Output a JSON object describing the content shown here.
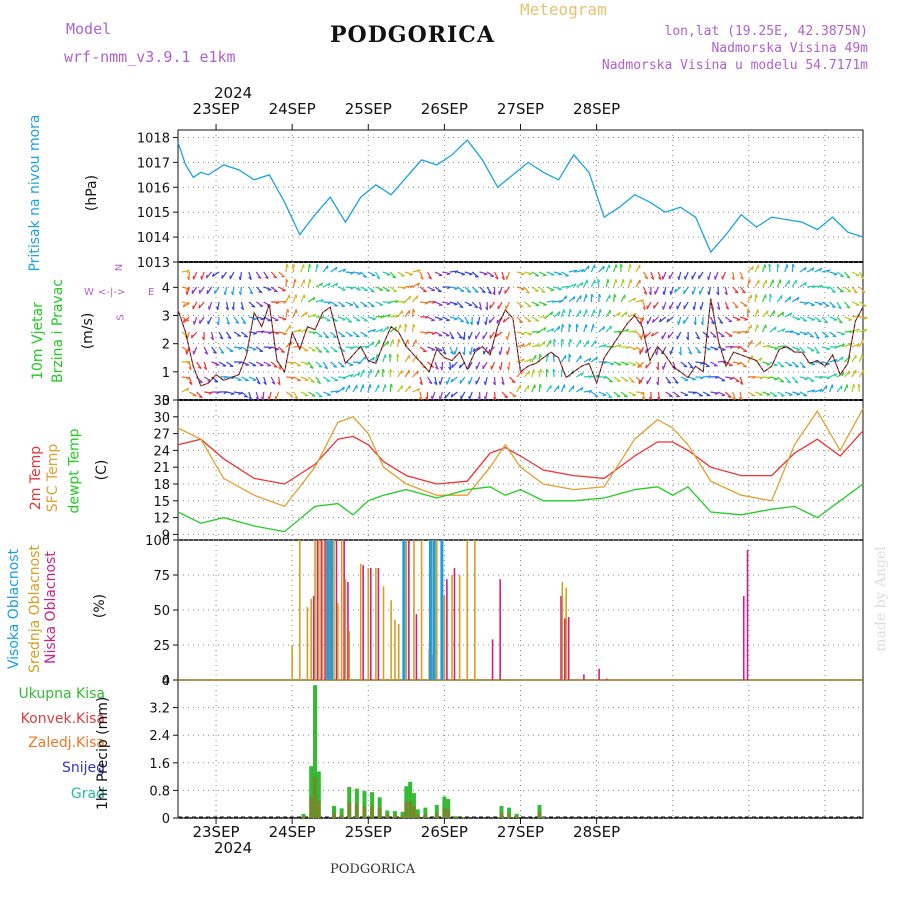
{
  "header": {
    "model_label": "Model",
    "model_name": "wrf-nmm_v3.9.1  e1km",
    "title": "PODGORICA",
    "meteogram": "Meteogram",
    "lonlat": "lon,lat (19.25E, 42.3875N)",
    "altitude": "Nadmorska Visina 49m",
    "model_altitude": "Nadmorska Visina u modelu 54.7171m"
  },
  "time_axis": {
    "year": "2024",
    "days": [
      "23SEP",
      "24SEP",
      "25SEP",
      "26SEP",
      "27SEP",
      "28SEP"
    ]
  },
  "footer": {
    "station": "PODGORICA",
    "credit": "made by Angel"
  },
  "colors": {
    "pressure": "#1aa3e0",
    "temp2m": "#ee3333",
    "sfc": "#e0a030",
    "dew": "#22cc22",
    "cloud_high": "#1a9ee6",
    "cloud_mid": "#d4a020",
    "cloud_low": "#cc1f8a",
    "precip_total": "#33bb33",
    "precip_conv": "#d84040",
    "precip_frozen": "#ee7722",
    "snow": "#3333cc",
    "grad": "#22bbaa",
    "wind_line": "#ee3333"
  },
  "panels": {
    "pressure": {
      "labels": [
        "Pritisak na nivou mora",
        "(hPa)"
      ],
      "ticks": [
        "1018",
        "1017",
        "1016",
        "1015",
        "1014",
        "1013"
      ]
    },
    "wind": {
      "labels": [
        "10m Vjetar",
        "Brzina i Pravac",
        "(m/s)"
      ],
      "compass": [
        "N",
        "E",
        "S",
        "W"
      ],
      "ticks": [
        "4",
        "3",
        "2",
        "1",
        "0"
      ]
    },
    "temperature": {
      "labels": [
        "2m Temp",
        "SFC Temp",
        "dewpt Temp",
        "(C)"
      ],
      "ticks": [
        "33",
        "30",
        "27",
        "24",
        "21",
        "18",
        "15",
        "12",
        "9"
      ]
    },
    "cloud": {
      "labels": [
        "Visoka Oblacnost",
        "Srednja Oblacnost",
        "Niska Oblacnost",
        "(%)"
      ],
      "ticks": [
        "100",
        "75",
        "50",
        "25",
        "0"
      ]
    },
    "precip": {
      "labels": [
        "Ukupna Kisa",
        "Konvek.Kisa",
        "Zaledj.Kisa",
        "Snijeg",
        "Grad",
        "1hr Precip (mm)"
      ],
      "ticks": [
        "4",
        "3.2",
        "2.4",
        "1.6",
        "0.8",
        "0"
      ]
    }
  },
  "chart_data": [
    {
      "type": "line",
      "title": "",
      "ylabel": "Pritisak na nivou mora (hPa)",
      "ylim": [
        1013,
        1018.3
      ],
      "x_days": [
        0.0,
        0.1,
        0.2,
        0.3,
        0.4,
        0.6,
        0.8,
        1.0,
        1.2,
        1.4,
        1.6,
        1.8,
        2.0,
        2.2,
        2.4,
        2.6,
        2.8,
        3.0,
        3.2,
        3.4,
        3.6,
        3.8,
        4.0,
        4.2,
        4.4,
        4.6,
        4.8,
        5.0,
        5.2,
        5.4,
        5.6,
        5.8,
        6.0,
        6.2,
        6.4,
        6.6,
        6.8,
        7.0,
        7.2,
        7.4,
        7.6,
        7.8,
        8.0,
        8.2,
        8.4,
        8.6,
        8.8,
        9.0
      ],
      "series": [
        {
          "name": "Pritisak na nivou mora",
          "values": [
            1017.8,
            1016.9,
            1016.4,
            1016.6,
            1016.5,
            1016.9,
            1016.7,
            1016.3,
            1016.5,
            1015.4,
            1014.1,
            1014.9,
            1015.6,
            1014.6,
            1015.6,
            1016.1,
            1015.7,
            1016.4,
            1017.1,
            1016.9,
            1017.3,
            1017.9,
            1017.1,
            1016.0,
            1016.5,
            1017.0,
            1016.6,
            1016.3,
            1017.3,
            1016.6,
            1014.8,
            1015.2,
            1015.7,
            1015.4,
            1015.0,
            1015.2,
            1014.8,
            1013.4,
            1014.1,
            1014.9,
            1014.4,
            1014.8,
            1014.7,
            1014.6,
            1014.3,
            1014.8,
            1014.2,
            1014.0
          ]
        }
      ]
    },
    {
      "type": "line",
      "title": "",
      "ylabel": "10m Vjetar Brzina i Pravac (m/s)",
      "ylim": [
        0,
        4.9
      ],
      "x_days": [
        0.0,
        0.1,
        0.2,
        0.3,
        0.4,
        0.5,
        0.6,
        0.7,
        0.8,
        0.9,
        1.0,
        1.1,
        1.2,
        1.3,
        1.4,
        1.5,
        1.6,
        1.7,
        1.8,
        1.9,
        2.0,
        2.1,
        2.2,
        2.3,
        2.4,
        2.5,
        2.6,
        2.7,
        2.8,
        2.9,
        3.0,
        3.1,
        3.2,
        3.3,
        3.4,
        3.5,
        3.6,
        3.7,
        3.8,
        3.9,
        4.0,
        4.1,
        4.2,
        4.3,
        4.4,
        4.5,
        4.6,
        4.7,
        4.8,
        4.9,
        5.0,
        5.1,
        5.2,
        5.3,
        5.4,
        5.5,
        5.6,
        5.7,
        5.8,
        5.9,
        6.0,
        6.1,
        6.2,
        6.3,
        6.4,
        6.5,
        6.6,
        6.7,
        6.8,
        6.9,
        7.0,
        7.1,
        7.2,
        7.3,
        7.4,
        7.5,
        7.6,
        7.7,
        7.8,
        7.9,
        8.0,
        8.1,
        8.2,
        8.3,
        8.4,
        8.5,
        8.6,
        8.7,
        8.8,
        8.9,
        9.0
      ],
      "series": [
        {
          "name": "10m Vjetar",
          "values": [
            3.2,
            2.4,
            1.2,
            0.5,
            0.6,
            0.9,
            0.7,
            0.8,
            0.9,
            1.6,
            3.1,
            2.6,
            3.4,
            1.4,
            1.0,
            2.4,
            1.8,
            2.6,
            2.5,
            3.1,
            3.3,
            2.2,
            1.3,
            1.6,
            1.9,
            1.4,
            1.3,
            2.0,
            2.6,
            2.4,
            1.9,
            1.6,
            1.3,
            1.0,
            1.8,
            1.5,
            1.4,
            1.7,
            1.1,
            1.7,
            1.9,
            1.6,
            2.6,
            3.2,
            2.9,
            1.0,
            1.2,
            1.3,
            1.5,
            1.7,
            1.5,
            0.8,
            1.0,
            1.2,
            1.3,
            0.6,
            1.5,
            1.9,
            2.3,
            2.7,
            3.0,
            2.6,
            1.4,
            1.9,
            1.6,
            1.2,
            1.0,
            0.8,
            1.2,
            1.0,
            3.6,
            2.1,
            1.2,
            1.7,
            1.6,
            1.5,
            1.4,
            1.0,
            1.2,
            1.8,
            1.9,
            1.7,
            1.7,
            1.3,
            1.4,
            1.2,
            1.6,
            0.9,
            1.3,
            2.8,
            3.3
          ]
        }
      ]
    },
    {
      "type": "line",
      "title": "",
      "ylabel": "Temp (C)",
      "ylim": [
        8,
        33
      ],
      "x_days": [
        0.0,
        0.3,
        0.6,
        1.0,
        1.4,
        1.8,
        2.1,
        2.3,
        2.5,
        2.7,
        3.0,
        3.4,
        3.8,
        4.1,
        4.3,
        4.5,
        4.8,
        5.2,
        5.6,
        6.0,
        6.3,
        6.5,
        6.7,
        7.0,
        7.4,
        7.8,
        8.1,
        8.4,
        8.7,
        9.0
      ],
      "series": [
        {
          "name": "2m Temp",
          "values": [
            25,
            26,
            22.5,
            19,
            18,
            21.5,
            26,
            26.5,
            25,
            22,
            19.5,
            18,
            18.5,
            23.5,
            24.5,
            23,
            20.5,
            19.5,
            19,
            23,
            25.5,
            25.5,
            24,
            21,
            19.5,
            19.5,
            23.5,
            26,
            23,
            27.5
          ]
        },
        {
          "name": "SFC Temp",
          "values": [
            28,
            26,
            19,
            16,
            14,
            21,
            29,
            30,
            27,
            21,
            18,
            16,
            16,
            21,
            25,
            21,
            18,
            17,
            17.5,
            26,
            29.5,
            28,
            25,
            18.5,
            16,
            15,
            25,
            31,
            24,
            31.5
          ]
        },
        {
          "name": "dewpt Temp",
          "values": [
            13,
            11,
            12,
            10.5,
            9.5,
            14,
            14.5,
            12.5,
            15,
            16,
            17,
            15.5,
            17,
            17.5,
            16,
            17,
            15,
            15,
            15.5,
            17,
            17.5,
            16,
            17.5,
            13,
            12.5,
            13.5,
            14,
            12,
            15,
            18
          ]
        }
      ]
    },
    {
      "type": "bar",
      "title": "",
      "ylabel": "Oblacnost (%)",
      "ylim": [
        0,
        100
      ],
      "x_days": [
        1.5,
        1.6,
        1.7,
        1.75,
        1.8,
        1.85,
        1.9,
        1.95,
        2.0,
        2.05,
        2.1,
        2.15,
        2.2,
        2.25,
        2.4,
        2.5,
        2.6,
        2.7,
        2.8,
        2.85,
        2.9,
        3.0,
        3.1,
        3.2,
        3.3,
        3.35,
        3.4,
        3.5,
        3.6,
        3.7,
        3.8,
        3.9,
        4.1,
        4.2,
        5.0,
        5.05,
        5.1,
        5.3,
        5.5,
        5.6,
        6.8,
        7.4,
        7.45
      ],
      "series": [
        {
          "name": "Visoka Oblacnost",
          "values": [
            0,
            0,
            0,
            0,
            0,
            0,
            0,
            0,
            100,
            100,
            0,
            0,
            0,
            0,
            0,
            0,
            0,
            0,
            0,
            0,
            0,
            100,
            0,
            0,
            0,
            100,
            100,
            100,
            0,
            0,
            0,
            0,
            0,
            0,
            0,
            0,
            0,
            0,
            0,
            0,
            0,
            0,
            0
          ]
        },
        {
          "name": "Srednja Oblacnost",
          "values": [
            25,
            100,
            52,
            58,
            100,
            100,
            100,
            100,
            100,
            100,
            55,
            100,
            72,
            35,
            83,
            80,
            80,
            67,
            57,
            43,
            40,
            100,
            100,
            100,
            22,
            100,
            100,
            60,
            75,
            75,
            100,
            100,
            0,
            0,
            0,
            70,
            66,
            0,
            0,
            0,
            0,
            0,
            0
          ]
        },
        {
          "name": "Niska Oblacnost",
          "values": [
            0,
            0,
            0,
            60,
            100,
            100,
            100,
            100,
            0,
            100,
            0,
            100,
            70,
            0,
            82,
            80,
            80,
            0,
            0,
            0,
            0,
            100,
            47,
            0,
            18,
            0,
            0,
            72,
            80,
            0,
            0,
            0,
            29,
            72,
            60,
            44,
            45,
            4,
            8,
            1,
            0,
            60,
            93
          ]
        }
      ]
    },
    {
      "type": "bar",
      "title": "",
      "ylabel": "1hr Precip (mm)",
      "ylim": [
        0,
        4
      ],
      "x_days": [
        1.65,
        1.75,
        1.8,
        1.85,
        1.9,
        2.05,
        2.15,
        2.25,
        2.35,
        2.45,
        2.55,
        2.65,
        2.75,
        2.85,
        2.95,
        3.0,
        3.05,
        3.1,
        3.15,
        3.25,
        3.4,
        3.5,
        3.55,
        3.65,
        3.75,
        4.25,
        4.35,
        4.45,
        4.75,
        4.8,
        5.05
      ],
      "series": [
        {
          "name": "Ukupna Kisa",
          "values": [
            0.12,
            1.5,
            3.85,
            1.35,
            0.0,
            0.35,
            0.28,
            0.9,
            0.85,
            0.78,
            0.75,
            0.6,
            0.22,
            0.2,
            0.18,
            0.92,
            1.05,
            0.72,
            0.25,
            0.3,
            0.38,
            0.62,
            0.55,
            0.05,
            0.03,
            0.35,
            0.3,
            0.12,
            0.38,
            0.03,
            0.0
          ]
        },
        {
          "name": "Konvek.Kisa",
          "values": [
            0.05,
            0.6,
            1.2,
            0.5,
            0.0,
            0.15,
            0.1,
            0.45,
            0.42,
            0.35,
            0.35,
            0.3,
            0.1,
            0.08,
            0.08,
            0.45,
            0.5,
            0.35,
            0.1,
            0.12,
            0.15,
            0.3,
            0.25,
            0.02,
            0.01,
            0.15,
            0.12,
            0.05,
            0.18,
            0.01,
            0.0
          ]
        }
      ]
    }
  ]
}
